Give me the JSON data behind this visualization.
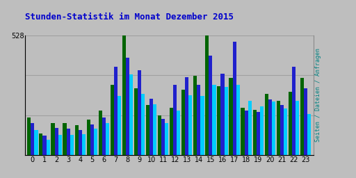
{
  "title": "Stunden-Statistik im Monat Dezember 2015",
  "ylabel_right": "Seiten / Dateien / Anfragen",
  "ytick_label": "528",
  "hours": [
    0,
    1,
    2,
    3,
    4,
    5,
    6,
    7,
    8,
    9,
    10,
    11,
    12,
    13,
    14,
    15,
    16,
    17,
    18,
    19,
    20,
    21,
    22,
    23
  ],
  "seiten": [
    165,
    95,
    140,
    140,
    130,
    155,
    195,
    310,
    528,
    295,
    220,
    175,
    210,
    290,
    350,
    528,
    305,
    340,
    210,
    200,
    270,
    240,
    280,
    340
  ],
  "dateien": [
    140,
    85,
    120,
    115,
    110,
    135,
    165,
    390,
    430,
    375,
    250,
    160,
    310,
    345,
    310,
    440,
    360,
    500,
    195,
    190,
    245,
    220,
    390,
    295
  ],
  "anfragen": [
    110,
    68,
    88,
    88,
    90,
    115,
    140,
    260,
    355,
    270,
    225,
    140,
    195,
    265,
    260,
    310,
    300,
    310,
    240,
    215,
    235,
    205,
    240,
    180
  ],
  "color_seiten": "#006400",
  "color_dateien": "#2020CC",
  "color_anfragen": "#00CCFF",
  "bg_color": "#BEBEBE",
  "plot_bg": "#BEBEBE",
  "grid_color": "#AAAAAA",
  "title_color": "#0000CC",
  "ylabel_color": "#008080",
  "ymax": 528,
  "bar_width": 0.3,
  "title_fontsize": 9,
  "tick_fontsize": 7
}
